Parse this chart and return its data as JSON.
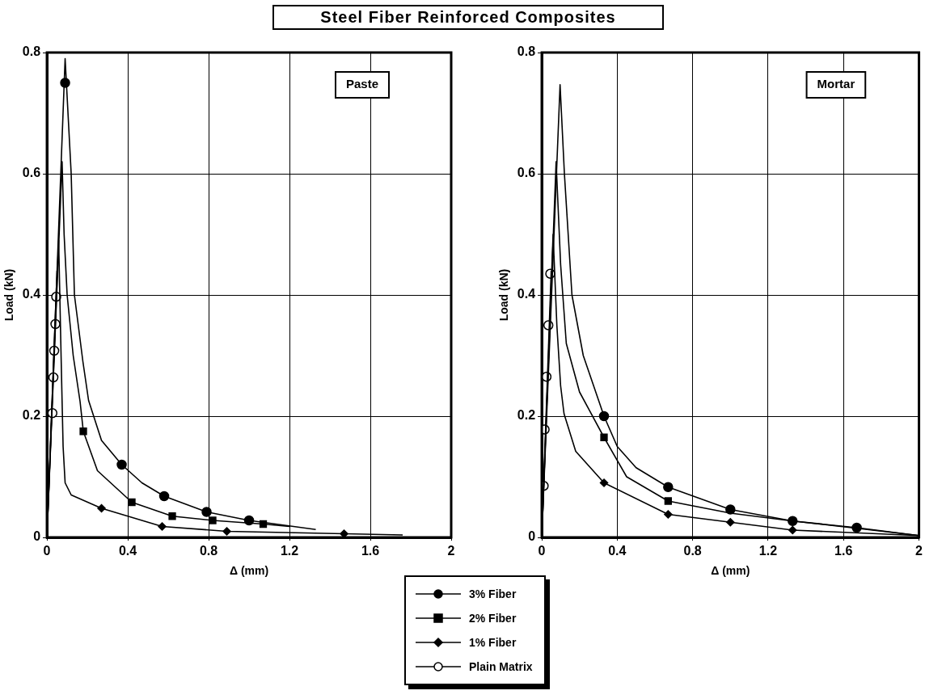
{
  "chart_data": [
    {
      "type": "line",
      "title": "Steel Fiber Reinforced Composites",
      "xlabel": "Δ (mm)",
      "ylabel": "Load (kN)",
      "annotations": [
        "Paste"
      ],
      "xlim": [
        0,
        2
      ],
      "ylim": [
        0,
        0.8
      ],
      "xticks": [
        0,
        0.4,
        0.8,
        1.2,
        1.6,
        2
      ],
      "yticks": [
        0,
        0.2,
        0.4,
        0.6,
        0.8
      ],
      "grid": true,
      "legend": "bottom right",
      "series": [
        {
          "type": "line",
          "marker": "none",
          "color": "#000000",
          "x": [
            0,
            0.09,
            0.12,
            0.136,
            0.178,
            0.206,
            0.27,
            0.37,
            0.47,
            0.58,
            0.79,
            1.0,
            1.33
          ],
          "values": [
            0,
            0.79,
            0.6,
            0.4,
            0.29,
            0.226,
            0.16,
            0.12,
            0.09,
            0.068,
            0.042,
            0.028,
            0.013
          ]
        },
        {
          "type": "line",
          "marker": "none",
          "color": "#000000",
          "x": [
            0,
            0.075,
            0.085,
            0.1,
            0.13,
            0.164,
            0.18,
            0.25,
            0.42,
            0.62,
            0.82,
            1.07,
            1.2
          ],
          "values": [
            0,
            0.62,
            0.5,
            0.4,
            0.3,
            0.224,
            0.175,
            0.11,
            0.058,
            0.035,
            0.028,
            0.022,
            0.018
          ]
        },
        {
          "type": "line",
          "marker": "none",
          "color": "#000000",
          "x": [
            0,
            0.058,
            0.07,
            0.08,
            0.09,
            0.12,
            0.27,
            0.57,
            0.89,
            1.47,
            1.76
          ],
          "values": [
            0,
            0.49,
            0.3,
            0.15,
            0.09,
            0.07,
            0.048,
            0.018,
            0.01,
            0.006,
            0.004
          ]
        },
        {
          "type": "line",
          "marker": "none",
          "color": "#000000",
          "x": [
            0,
            0.05
          ],
          "values": [
            0,
            0.44
          ]
        },
        {
          "type": "scatter",
          "name": "3% Fiber",
          "marker": "circle",
          "color": "#000000",
          "x": [
            0.09,
            0.37,
            0.58,
            0.79,
            1.0
          ],
          "values": [
            0.75,
            0.12,
            0.068,
            0.042,
            0.028
          ]
        },
        {
          "type": "scatter",
          "name": "2% Fiber",
          "marker": "square",
          "color": "#000000",
          "x": [
            0.18,
            0.42,
            0.62,
            0.82,
            1.07
          ],
          "values": [
            0.175,
            0.058,
            0.035,
            0.028,
            0.022
          ]
        },
        {
          "type": "scatter",
          "name": "1% Fiber",
          "marker": "diamond",
          "color": "#000000",
          "x": [
            0.27,
            0.57,
            0.89,
            1.47
          ],
          "values": [
            0.048,
            0.018,
            0.01,
            0.006
          ]
        },
        {
          "type": "scatter",
          "name": "Plain Matrix",
          "marker": "circle",
          "color": "#ffffff",
          "x": [
            0.027,
            0.032,
            0.036,
            0.042,
            0.046
          ],
          "values": [
            0.205,
            0.264,
            0.308,
            0.352,
            0.397
          ]
        }
      ]
    },
    {
      "type": "line",
      "xlabel": "Δ (mm)",
      "ylabel": "Load (kN)",
      "annotations": [
        "Mortar"
      ],
      "xlim": [
        0,
        2
      ],
      "ylim": [
        0,
        0.8
      ],
      "xticks": [
        0,
        0.4,
        0.8,
        1.2,
        1.6,
        2
      ],
      "yticks": [
        0,
        0.2,
        0.4,
        0.6,
        0.8
      ],
      "grid": true,
      "series": [
        {
          "type": "line",
          "marker": "none",
          "color": "#000000",
          "x": [
            0,
            0.097,
            0.12,
            0.16,
            0.22,
            0.33,
            0.4,
            0.5,
            0.67,
            1.0,
            1.33,
            1.67,
            2.0
          ],
          "values": [
            0,
            0.747,
            0.6,
            0.4,
            0.3,
            0.2,
            0.15,
            0.115,
            0.083,
            0.046,
            0.027,
            0.016,
            0.003
          ]
        },
        {
          "type": "line",
          "marker": "none",
          "color": "#000000",
          "x": [
            0,
            0.076,
            0.1,
            0.13,
            0.2,
            0.33,
            0.45,
            0.67,
            1.0,
            1.33,
            1.67,
            2.0
          ],
          "values": [
            0,
            0.62,
            0.45,
            0.32,
            0.24,
            0.165,
            0.1,
            0.06,
            0.04,
            0.027,
            0.015,
            0.003
          ]
        },
        {
          "type": "line",
          "marker": "none",
          "color": "#000000",
          "x": [
            0,
            0.06,
            0.08,
            0.1,
            0.118,
            0.18,
            0.33,
            0.67,
            1.0,
            1.33,
            2.0
          ],
          "values": [
            0,
            0.5,
            0.35,
            0.25,
            0.204,
            0.142,
            0.09,
            0.038,
            0.025,
            0.012,
            0.003
          ]
        },
        {
          "type": "line",
          "marker": "none",
          "color": "#000000",
          "x": [
            0,
            0.05
          ],
          "values": [
            0,
            0.44
          ]
        },
        {
          "type": "scatter",
          "marker": "circle",
          "color": "#000000",
          "x": [
            0.33,
            0.67,
            1.0,
            1.33,
            1.67
          ],
          "values": [
            0.2,
            0.083,
            0.046,
            0.027,
            0.016
          ]
        },
        {
          "type": "scatter",
          "marker": "square",
          "color": "#000000",
          "x": [
            0.33,
            0.67
          ],
          "values": [
            0.165,
            0.06
          ]
        },
        {
          "type": "scatter",
          "marker": "diamond",
          "color": "#000000",
          "x": [
            0.33,
            0.67,
            1.0,
            1.33
          ],
          "values": [
            0.09,
            0.038,
            0.025,
            0.012
          ]
        },
        {
          "type": "scatter",
          "marker": "circle",
          "color": "#ffffff",
          "x": [
            0.01,
            0.015,
            0.025,
            0.035,
            0.045
          ],
          "values": [
            0.085,
            0.178,
            0.265,
            0.35,
            0.435
          ]
        }
      ]
    }
  ]
}
